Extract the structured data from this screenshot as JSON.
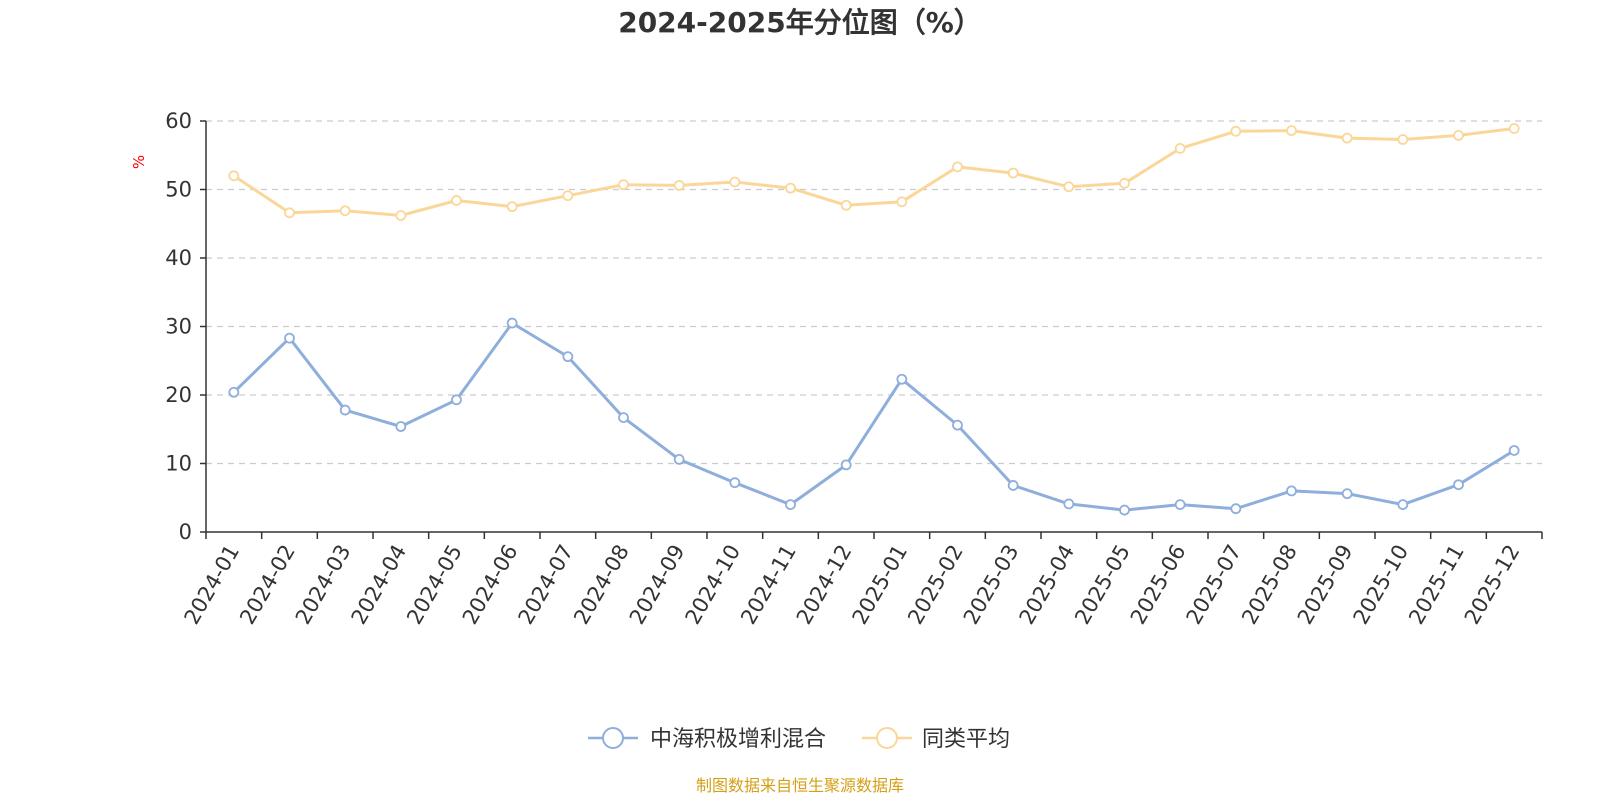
{
  "chart_data": {
    "type": "line",
    "title": "2024-2025年分位图（%）",
    "ylabel": "%",
    "xlabel": "",
    "ylim": [
      0,
      60
    ],
    "y_ticks": [
      0,
      10,
      20,
      30,
      40,
      50,
      60
    ],
    "grid": "horizontal dashed",
    "legend_position": "bottom-center",
    "categories": [
      "2024-01",
      "2024-02",
      "2024-03",
      "2024-04",
      "2024-05",
      "2024-06",
      "2024-07",
      "2024-08",
      "2024-09",
      "2024-10",
      "2024-11",
      "2024-12",
      "2025-01",
      "2025-02",
      "2025-03",
      "2025-04",
      "2025-05",
      "2025-06",
      "2025-07",
      "2025-08",
      "2025-09",
      "2025-10",
      "2025-11",
      "2025-12"
    ],
    "series": [
      {
        "name": "中海积极增利混合",
        "color": "#8eaedb",
        "values": [
          20.4,
          28.3,
          17.8,
          15.4,
          19.3,
          30.5,
          25.6,
          16.7,
          10.6,
          7.2,
          4.0,
          9.8,
          22.3,
          15.6,
          6.8,
          4.1,
          3.2,
          4.0,
          3.4,
          6.0,
          5.6,
          4.0,
          6.9,
          11.9
        ]
      },
      {
        "name": "同类平均",
        "color": "#fad799",
        "values": [
          52.0,
          46.6,
          46.9,
          46.2,
          48.4,
          47.5,
          49.1,
          50.7,
          50.6,
          51.1,
          50.2,
          47.7,
          48.2,
          53.3,
          52.4,
          50.4,
          50.9,
          56.0,
          58.5,
          58.6,
          57.5,
          57.3,
          57.9,
          58.9
        ]
      }
    ]
  },
  "source_note": "制图数据来自恒生聚源数据库",
  "colors": {
    "axis": "#333333",
    "grid": "#cccccc",
    "unit_label": "#ff0000",
    "source_note": "#d4a017"
  }
}
